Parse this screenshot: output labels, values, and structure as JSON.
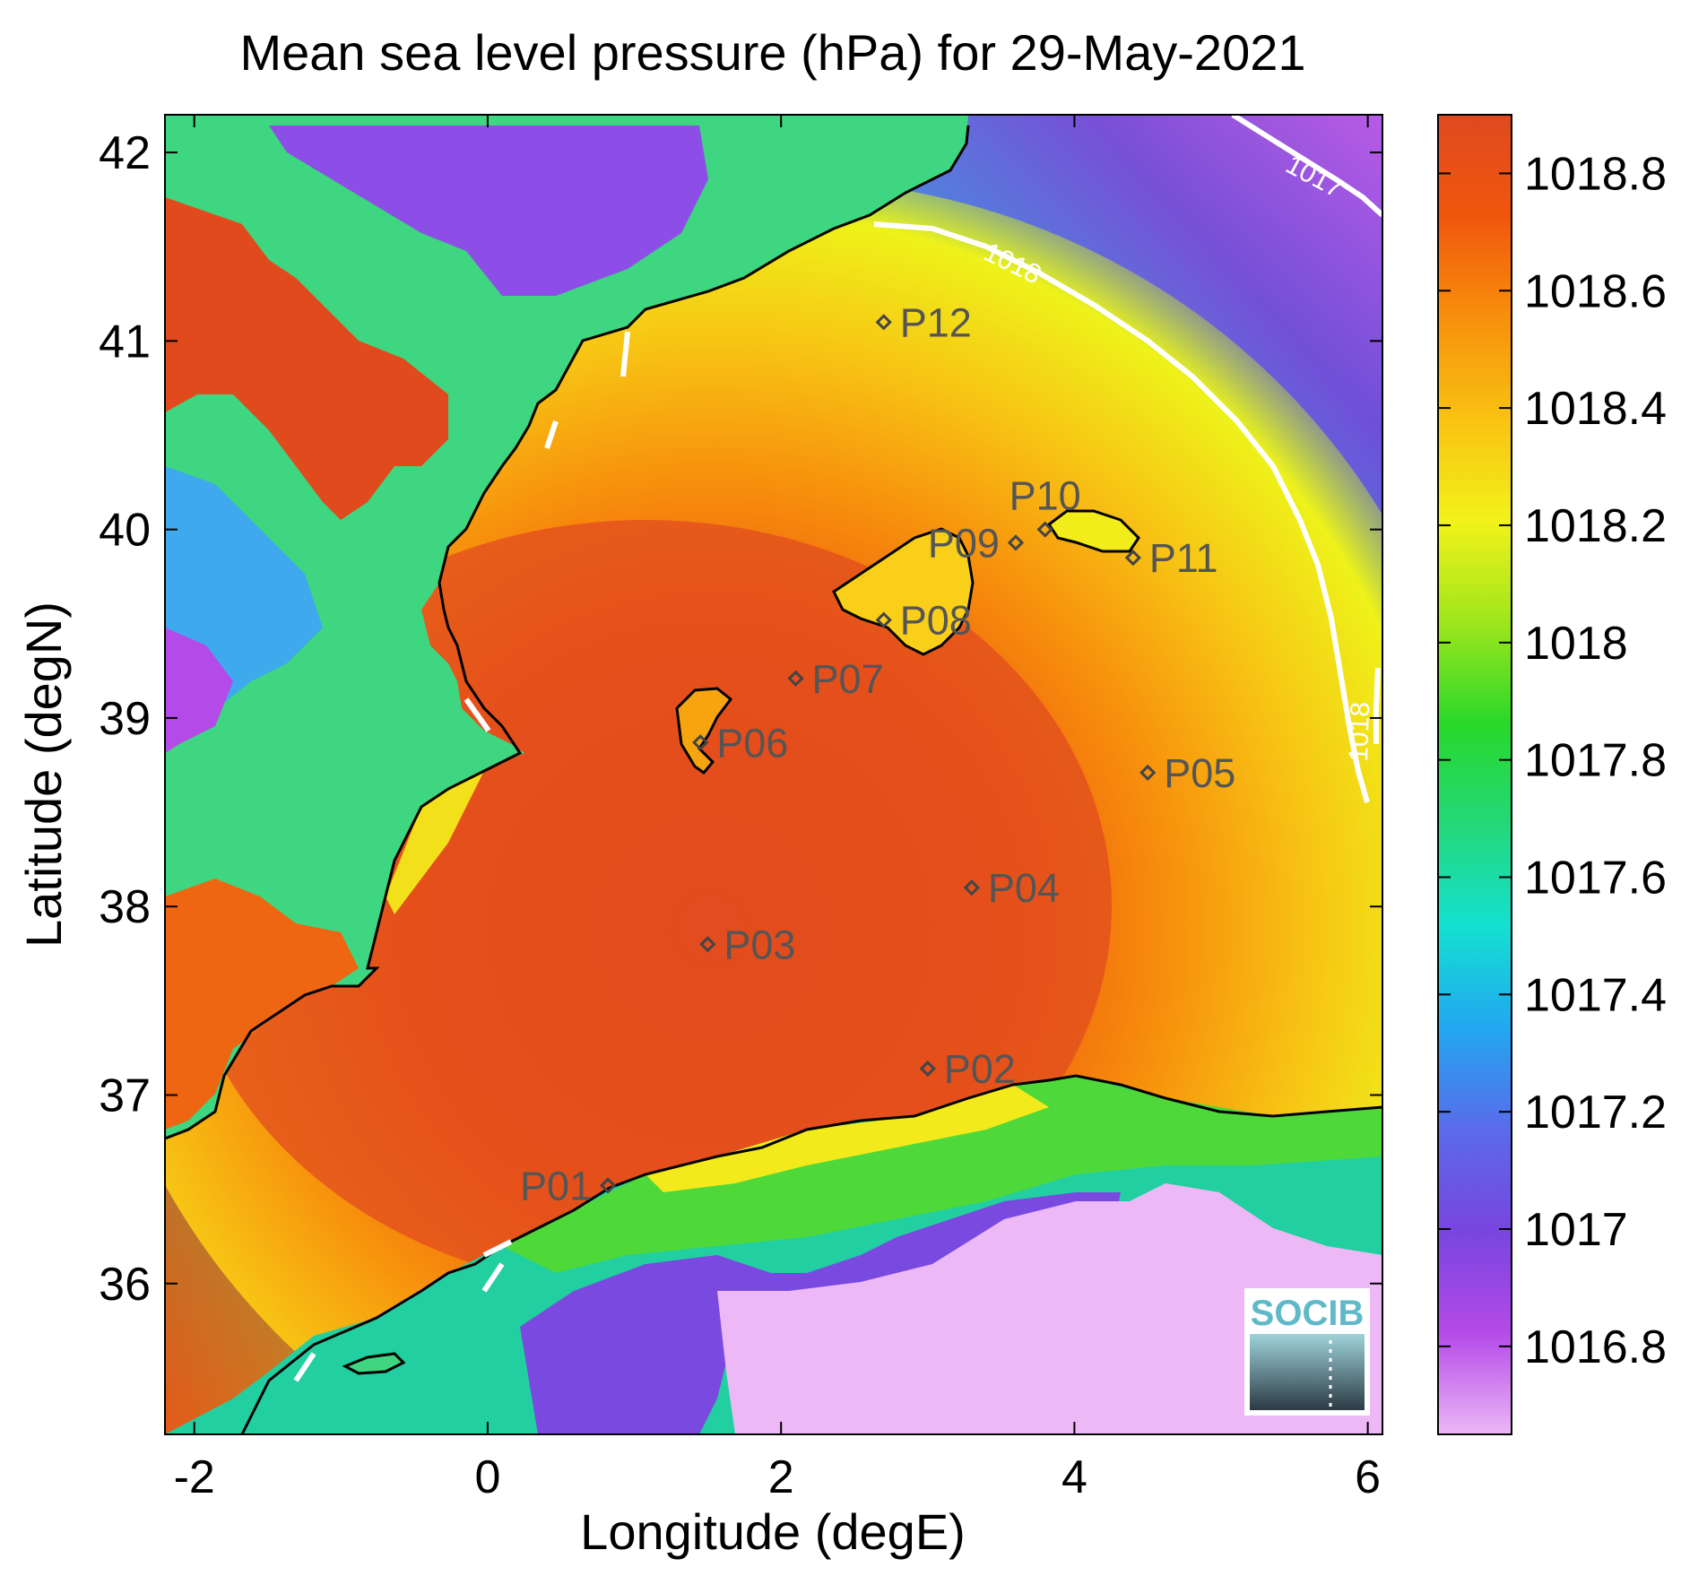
{
  "chart_data": {
    "type": "heatmap",
    "title": "Mean sea level pressure (hPa) for 29-May-2021",
    "xlabel": "Longitude (degE)",
    "ylabel": "Latitude (degN)",
    "xlim": [
      -2.2,
      6.1
    ],
    "ylim": [
      35.2,
      42.2
    ],
    "xticks": [
      -2,
      0,
      2,
      4,
      6
    ],
    "xtick_labels": [
      "-2",
      "0",
      "2",
      "4",
      "6"
    ],
    "yticks": [
      36,
      37,
      38,
      39,
      40,
      41,
      42
    ],
    "ytick_labels": [
      "36",
      "37",
      "38",
      "39",
      "40",
      "41",
      "42"
    ],
    "colorbar": {
      "range": [
        1016.65,
        1018.9
      ],
      "ticks": [
        1016.8,
        1017,
        1017.2,
        1017.4,
        1017.6,
        1017.8,
        1018,
        1018.2,
        1018.4,
        1018.6,
        1018.8
      ],
      "tick_labels": [
        "1016.8",
        "1017",
        "1017.2",
        "1017.4",
        "1017.6",
        "1017.8",
        "1018",
        "1018.2",
        "1018.4",
        "1018.6",
        "1018.8"
      ],
      "colors": [
        "#ecb8f6",
        "#b44ae8",
        "#7845de",
        "#5a6bea",
        "#22a7f0",
        "#14e0d0",
        "#24d87a",
        "#28d82a",
        "#9ee61c",
        "#f2f21a",
        "#f9c212",
        "#f7900c",
        "#f1560d",
        "#de4a20"
      ]
    },
    "contours": [
      {
        "label": "1017",
        "value": 1017
      },
      {
        "label": "1018",
        "value": 1018
      },
      {
        "label": "1018",
        "value": 1018
      }
    ],
    "stations": [
      {
        "name": "P01",
        "lon": 0.82,
        "lat": 36.52,
        "label_side": "left"
      },
      {
        "name": "P02",
        "lon": 3.0,
        "lat": 37.14,
        "label_side": "right"
      },
      {
        "name": "P03",
        "lon": 1.5,
        "lat": 37.8,
        "label_side": "right"
      },
      {
        "name": "P04",
        "lon": 3.3,
        "lat": 38.1,
        "label_side": "right"
      },
      {
        "name": "P05",
        "lon": 4.5,
        "lat": 38.71,
        "label_side": "right"
      },
      {
        "name": "P06",
        "lon": 1.45,
        "lat": 38.87,
        "label_side": "right"
      },
      {
        "name": "P07",
        "lon": 2.1,
        "lat": 39.21,
        "label_side": "right"
      },
      {
        "name": "P08",
        "lon": 2.7,
        "lat": 39.52,
        "label_side": "right"
      },
      {
        "name": "P09",
        "lon": 3.6,
        "lat": 39.93,
        "label_side": "left"
      },
      {
        "name": "P10",
        "lon": 3.8,
        "lat": 40.0,
        "label_side": "top"
      },
      {
        "name": "P11",
        "lon": 4.4,
        "lat": 39.85,
        "label_side": "right"
      },
      {
        "name": "P12",
        "lon": 2.7,
        "lat": 41.1,
        "label_side": "right"
      }
    ]
  },
  "logo": {
    "text": "SOCIB"
  }
}
